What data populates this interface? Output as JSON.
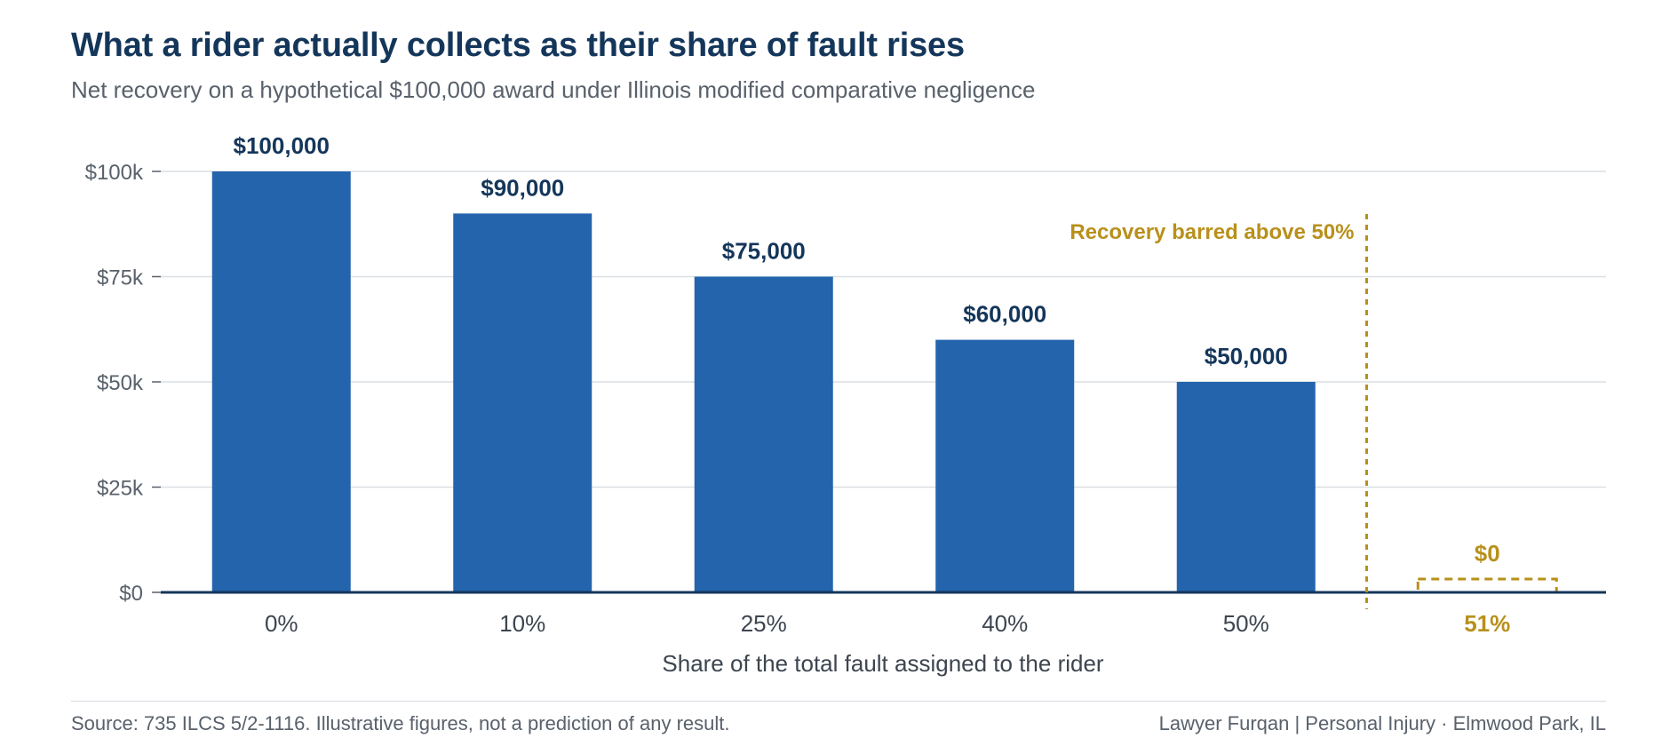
{
  "chart_data": {
    "type": "bar",
    "title": "What a rider actually collects as their share of fault rises",
    "subtitle": "Net recovery on a hypothetical $100,000 award under Illinois modified comparative negligence",
    "xlabel": "Share of the total fault assigned to the rider",
    "ylabel": "",
    "categories": [
      "0%",
      "10%",
      "25%",
      "40%",
      "50%",
      "51%"
    ],
    "values": [
      100000,
      90000,
      75000,
      60000,
      50000,
      0
    ],
    "value_labels": [
      "$100,000",
      "$90,000",
      "$75,000",
      "$60,000",
      "$50,000",
      "$0"
    ],
    "ylim": [
      0,
      100000
    ],
    "yticks": [
      0,
      25000,
      50000,
      75000,
      100000
    ],
    "ytick_labels": [
      "$0",
      "$25k",
      "$50k",
      "$75k",
      "$100k"
    ],
    "grid": true,
    "highlight_category": "51%",
    "threshold": {
      "label": "Recovery barred above 50%",
      "between": [
        "50%",
        "51%"
      ]
    },
    "colors": {
      "bar": "#2364ad",
      "barred": "#b8901b",
      "label": "#14365a",
      "grid": "#dcdfe3",
      "axis": "#14365a",
      "tick": "#59616b"
    }
  },
  "footer": {
    "source": "Source: 735 ILCS 5/2-1116. Illustrative figures, not a prediction of any result.",
    "credit": "Lawyer Furqan | Personal Injury · Elmwood Park, IL"
  }
}
